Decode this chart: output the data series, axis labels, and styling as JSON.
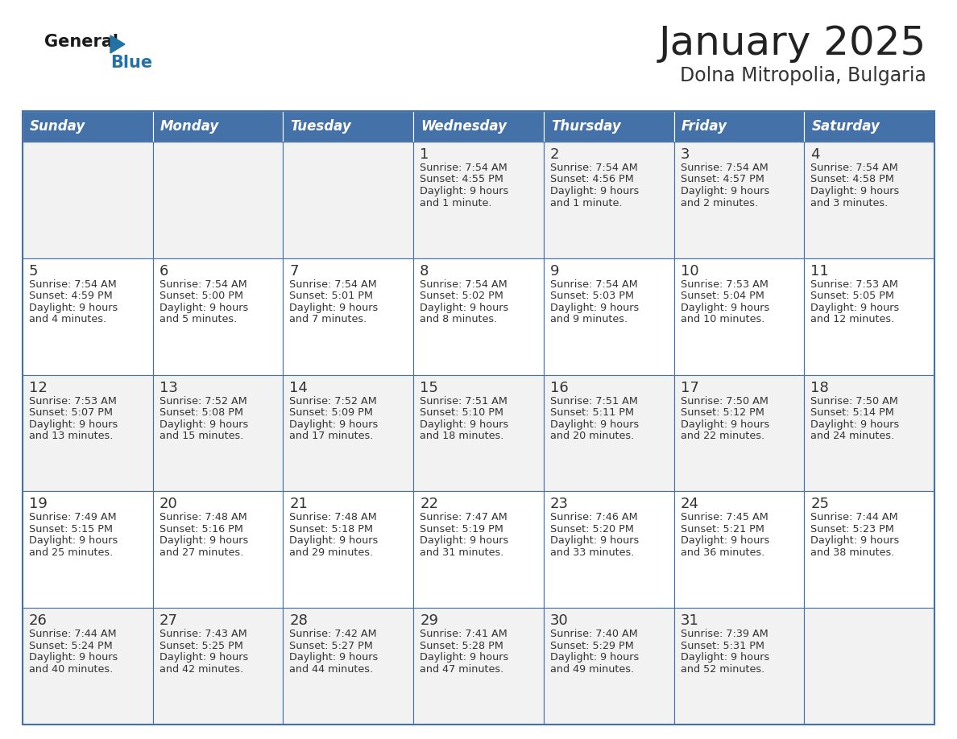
{
  "title": "January 2025",
  "subtitle": "Dolna Mitropolia, Bulgaria",
  "days_of_week": [
    "Sunday",
    "Monday",
    "Tuesday",
    "Wednesday",
    "Thursday",
    "Friday",
    "Saturday"
  ],
  "header_bg": "#4472A8",
  "header_text": "#FFFFFF",
  "row_bg_odd": "#F2F2F2",
  "row_bg_even": "#FFFFFF",
  "cell_border": "#4472A8",
  "day_num_color": "#333333",
  "info_text_color": "#333333",
  "title_color": "#222222",
  "subtitle_color": "#333333",
  "logo_general_color": "#1a1a1a",
  "logo_blue_color": "#2471A3",
  "calendar_data": [
    [
      {
        "day": null,
        "sunrise": null,
        "sunset": null,
        "daylight": null
      },
      {
        "day": null,
        "sunrise": null,
        "sunset": null,
        "daylight": null
      },
      {
        "day": null,
        "sunrise": null,
        "sunset": null,
        "daylight": null
      },
      {
        "day": 1,
        "sunrise": "7:54 AM",
        "sunset": "4:55 PM",
        "daylight": "9 hours\nand 1 minute."
      },
      {
        "day": 2,
        "sunrise": "7:54 AM",
        "sunset": "4:56 PM",
        "daylight": "9 hours\nand 1 minute."
      },
      {
        "day": 3,
        "sunrise": "7:54 AM",
        "sunset": "4:57 PM",
        "daylight": "9 hours\nand 2 minutes."
      },
      {
        "day": 4,
        "sunrise": "7:54 AM",
        "sunset": "4:58 PM",
        "daylight": "9 hours\nand 3 minutes."
      }
    ],
    [
      {
        "day": 5,
        "sunrise": "7:54 AM",
        "sunset": "4:59 PM",
        "daylight": "9 hours\nand 4 minutes."
      },
      {
        "day": 6,
        "sunrise": "7:54 AM",
        "sunset": "5:00 PM",
        "daylight": "9 hours\nand 5 minutes."
      },
      {
        "day": 7,
        "sunrise": "7:54 AM",
        "sunset": "5:01 PM",
        "daylight": "9 hours\nand 7 minutes."
      },
      {
        "day": 8,
        "sunrise": "7:54 AM",
        "sunset": "5:02 PM",
        "daylight": "9 hours\nand 8 minutes."
      },
      {
        "day": 9,
        "sunrise": "7:54 AM",
        "sunset": "5:03 PM",
        "daylight": "9 hours\nand 9 minutes."
      },
      {
        "day": 10,
        "sunrise": "7:53 AM",
        "sunset": "5:04 PM",
        "daylight": "9 hours\nand 10 minutes."
      },
      {
        "day": 11,
        "sunrise": "7:53 AM",
        "sunset": "5:05 PM",
        "daylight": "9 hours\nand 12 minutes."
      }
    ],
    [
      {
        "day": 12,
        "sunrise": "7:53 AM",
        "sunset": "5:07 PM",
        "daylight": "9 hours\nand 13 minutes."
      },
      {
        "day": 13,
        "sunrise": "7:52 AM",
        "sunset": "5:08 PM",
        "daylight": "9 hours\nand 15 minutes."
      },
      {
        "day": 14,
        "sunrise": "7:52 AM",
        "sunset": "5:09 PM",
        "daylight": "9 hours\nand 17 minutes."
      },
      {
        "day": 15,
        "sunrise": "7:51 AM",
        "sunset": "5:10 PM",
        "daylight": "9 hours\nand 18 minutes."
      },
      {
        "day": 16,
        "sunrise": "7:51 AM",
        "sunset": "5:11 PM",
        "daylight": "9 hours\nand 20 minutes."
      },
      {
        "day": 17,
        "sunrise": "7:50 AM",
        "sunset": "5:12 PM",
        "daylight": "9 hours\nand 22 minutes."
      },
      {
        "day": 18,
        "sunrise": "7:50 AM",
        "sunset": "5:14 PM",
        "daylight": "9 hours\nand 24 minutes."
      }
    ],
    [
      {
        "day": 19,
        "sunrise": "7:49 AM",
        "sunset": "5:15 PM",
        "daylight": "9 hours\nand 25 minutes."
      },
      {
        "day": 20,
        "sunrise": "7:48 AM",
        "sunset": "5:16 PM",
        "daylight": "9 hours\nand 27 minutes."
      },
      {
        "day": 21,
        "sunrise": "7:48 AM",
        "sunset": "5:18 PM",
        "daylight": "9 hours\nand 29 minutes."
      },
      {
        "day": 22,
        "sunrise": "7:47 AM",
        "sunset": "5:19 PM",
        "daylight": "9 hours\nand 31 minutes."
      },
      {
        "day": 23,
        "sunrise": "7:46 AM",
        "sunset": "5:20 PM",
        "daylight": "9 hours\nand 33 minutes."
      },
      {
        "day": 24,
        "sunrise": "7:45 AM",
        "sunset": "5:21 PM",
        "daylight": "9 hours\nand 36 minutes."
      },
      {
        "day": 25,
        "sunrise": "7:44 AM",
        "sunset": "5:23 PM",
        "daylight": "9 hours\nand 38 minutes."
      }
    ],
    [
      {
        "day": 26,
        "sunrise": "7:44 AM",
        "sunset": "5:24 PM",
        "daylight": "9 hours\nand 40 minutes."
      },
      {
        "day": 27,
        "sunrise": "7:43 AM",
        "sunset": "5:25 PM",
        "daylight": "9 hours\nand 42 minutes."
      },
      {
        "day": 28,
        "sunrise": "7:42 AM",
        "sunset": "5:27 PM",
        "daylight": "9 hours\nand 44 minutes."
      },
      {
        "day": 29,
        "sunrise": "7:41 AM",
        "sunset": "5:28 PM",
        "daylight": "9 hours\nand 47 minutes."
      },
      {
        "day": 30,
        "sunrise": "7:40 AM",
        "sunset": "5:29 PM",
        "daylight": "9 hours\nand 49 minutes."
      },
      {
        "day": 31,
        "sunrise": "7:39 AM",
        "sunset": "5:31 PM",
        "daylight": "9 hours\nand 52 minutes."
      },
      {
        "day": null,
        "sunrise": null,
        "sunset": null,
        "daylight": null
      }
    ]
  ]
}
